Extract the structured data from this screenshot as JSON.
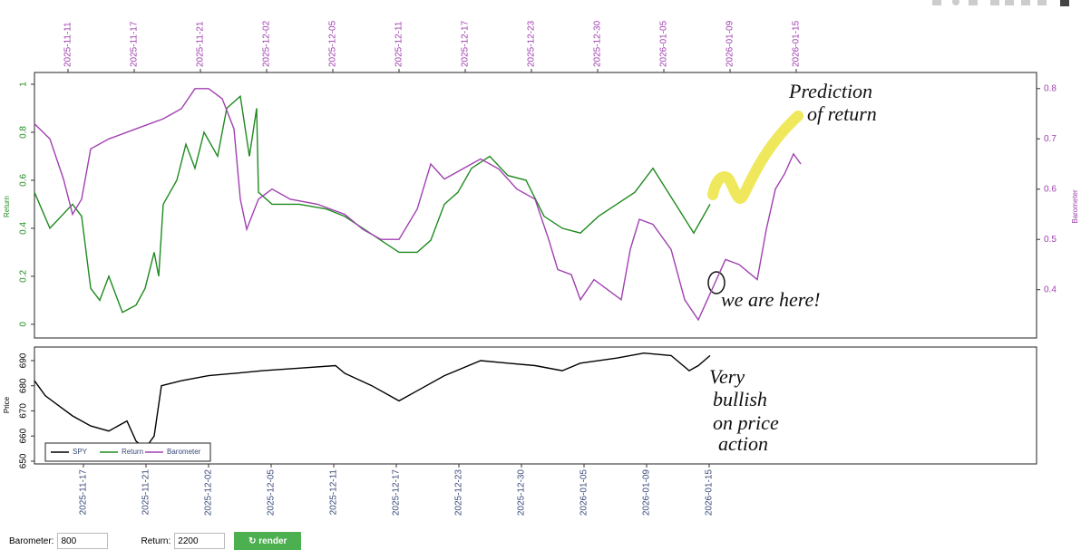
{
  "chart_data": [
    {
      "type": "line",
      "ylabel": "Return",
      "y2label": "Barometer",
      "xlim": [
        0,
        1105
      ],
      "xticks": [
        {
          "value": 37,
          "label": "2025-11-11"
        },
        {
          "value": 110,
          "label": "2025-11-17"
        },
        {
          "value": 183,
          "label": "2025-11-21"
        },
        {
          "value": 256,
          "label": "2025-12-02"
        },
        {
          "value": 329,
          "label": "2025-12-05"
        },
        {
          "value": 402,
          "label": "2025-12-11"
        },
        {
          "value": 475,
          "label": "2025-12-17"
        },
        {
          "value": 548,
          "label": "2025-12-23"
        },
        {
          "value": 621,
          "label": "2025-12-30"
        },
        {
          "value": 694,
          "label": "2026-01-05"
        },
        {
          "value": 767,
          "label": "2026-01-09"
        },
        {
          "value": 840,
          "label": "2026-01-15"
        }
      ],
      "ylim": [
        -0.057,
        1.049
      ],
      "yticks": [
        0,
        0.2,
        0.4,
        0.6,
        0.8,
        1
      ],
      "y2lim": [
        0.304,
        0.832
      ],
      "y2ticks": [
        0.4,
        0.5,
        0.6,
        0.7,
        0.8
      ],
      "series": [
        {
          "name": "Return",
          "color": "#1f8a1f",
          "x": [
            0,
            17,
            42,
            52,
            62,
            72,
            82,
            97,
            112,
            122,
            132,
            137,
            142,
            157,
            167,
            177,
            187,
            202,
            212,
            227,
            237,
            245,
            247,
            262,
            292,
            322,
            342,
            362,
            382,
            402,
            422,
            437,
            452,
            467,
            482,
            502,
            522,
            542,
            562,
            582,
            602,
            622,
            642,
            662,
            682,
            707,
            727,
            745
          ],
          "values": [
            0.55,
            0.4,
            0.5,
            0.45,
            0.15,
            0.1,
            0.2,
            0.05,
            0.08,
            0.15,
            0.3,
            0.2,
            0.5,
            0.6,
            0.75,
            0.65,
            0.8,
            0.7,
            0.9,
            0.95,
            0.7,
            0.9,
            0.55,
            0.5,
            0.5,
            0.48,
            0.45,
            0.4,
            0.35,
            0.3,
            0.3,
            0.35,
            0.5,
            0.55,
            0.65,
            0.7,
            0.62,
            0.6,
            0.45,
            0.4,
            0.38,
            0.45,
            0.5,
            0.55,
            0.65,
            0.5,
            0.38,
            0.5
          ]
        },
        {
          "name": "Barometer",
          "color": "#a040b0",
          "axis": "y2",
          "x": [
            0,
            17,
            32,
            42,
            52,
            62,
            82,
            112,
            142,
            162,
            177,
            192,
            207,
            220,
            227,
            234,
            247,
            262,
            282,
            312,
            342,
            362,
            382,
            402,
            422,
            437,
            452,
            472,
            492,
            512,
            532,
            552,
            567,
            577,
            592,
            602,
            617,
            632,
            647,
            657,
            667,
            682,
            702,
            717,
            732,
            742,
            752,
            762,
            777,
            797,
            807,
            817,
            827,
            837,
            845
          ],
          "values": [
            0.73,
            0.7,
            0.62,
            0.55,
            0.58,
            0.68,
            0.7,
            0.72,
            0.74,
            0.76,
            0.8,
            0.8,
            0.78,
            0.72,
            0.58,
            0.52,
            0.58,
            0.6,
            0.58,
            0.57,
            0.55,
            0.52,
            0.5,
            0.5,
            0.56,
            0.65,
            0.62,
            0.64,
            0.66,
            0.64,
            0.6,
            0.58,
            0.5,
            0.44,
            0.43,
            0.38,
            0.42,
            0.4,
            0.38,
            0.48,
            0.54,
            0.53,
            0.48,
            0.38,
            0.34,
            0.38,
            0.42,
            0.46,
            0.45,
            0.42,
            0.52,
            0.6,
            0.63,
            0.67,
            0.65
          ]
        }
      ],
      "annotations": [
        "Prediction",
        "of return",
        "we are here!"
      ]
    },
    {
      "type": "line",
      "ylabel": "Price",
      "xlim": [
        0,
        1105
      ],
      "xticks": [
        {
          "value": 54,
          "label": "2025-11-17"
        },
        {
          "value": 123,
          "label": "2025-11-21"
        },
        {
          "value": 192,
          "label": "2025-12-02"
        },
        {
          "value": 261,
          "label": "2025-12-05"
        },
        {
          "value": 330,
          "label": "2025-12-11"
        },
        {
          "value": 399,
          "label": "2025-12-17"
        },
        {
          "value": 468,
          "label": "2025-12-23"
        },
        {
          "value": 537,
          "label": "2025-12-30"
        },
        {
          "value": 606,
          "label": "2026-01-05"
        },
        {
          "value": 675,
          "label": "2026-01-09"
        },
        {
          "value": 744,
          "label": "2026-01-15"
        }
      ],
      "ylim": [
        648.9,
        695.4
      ],
      "yticks": [
        650,
        660,
        670,
        680,
        690
      ],
      "series": [
        {
          "name": "SPY",
          "color": "#000000",
          "x": [
            0,
            12,
            27,
            42,
            62,
            82,
            102,
            112,
            122,
            132,
            140,
            162,
            192,
            222,
            252,
            292,
            332,
            342,
            372,
            402,
            422,
            452,
            492,
            522,
            552,
            582,
            602,
            642,
            672,
            702,
            722,
            732,
            745
          ],
          "values": [
            682,
            676,
            672,
            668,
            664,
            662,
            666,
            658,
            655,
            660,
            680,
            682,
            684,
            685,
            686,
            687,
            688,
            685,
            680,
            674,
            678,
            684,
            690,
            689,
            688,
            686,
            689,
            691,
            693,
            692,
            686,
            688,
            692
          ]
        }
      ],
      "annotations": [
        "Very",
        "bullish",
        "on price",
        "action"
      ]
    }
  ],
  "controls": {
    "barometer_label": "Barometer:",
    "barometer_value": "800",
    "return_label": "Return:",
    "return_value": "2200",
    "button": "render"
  }
}
